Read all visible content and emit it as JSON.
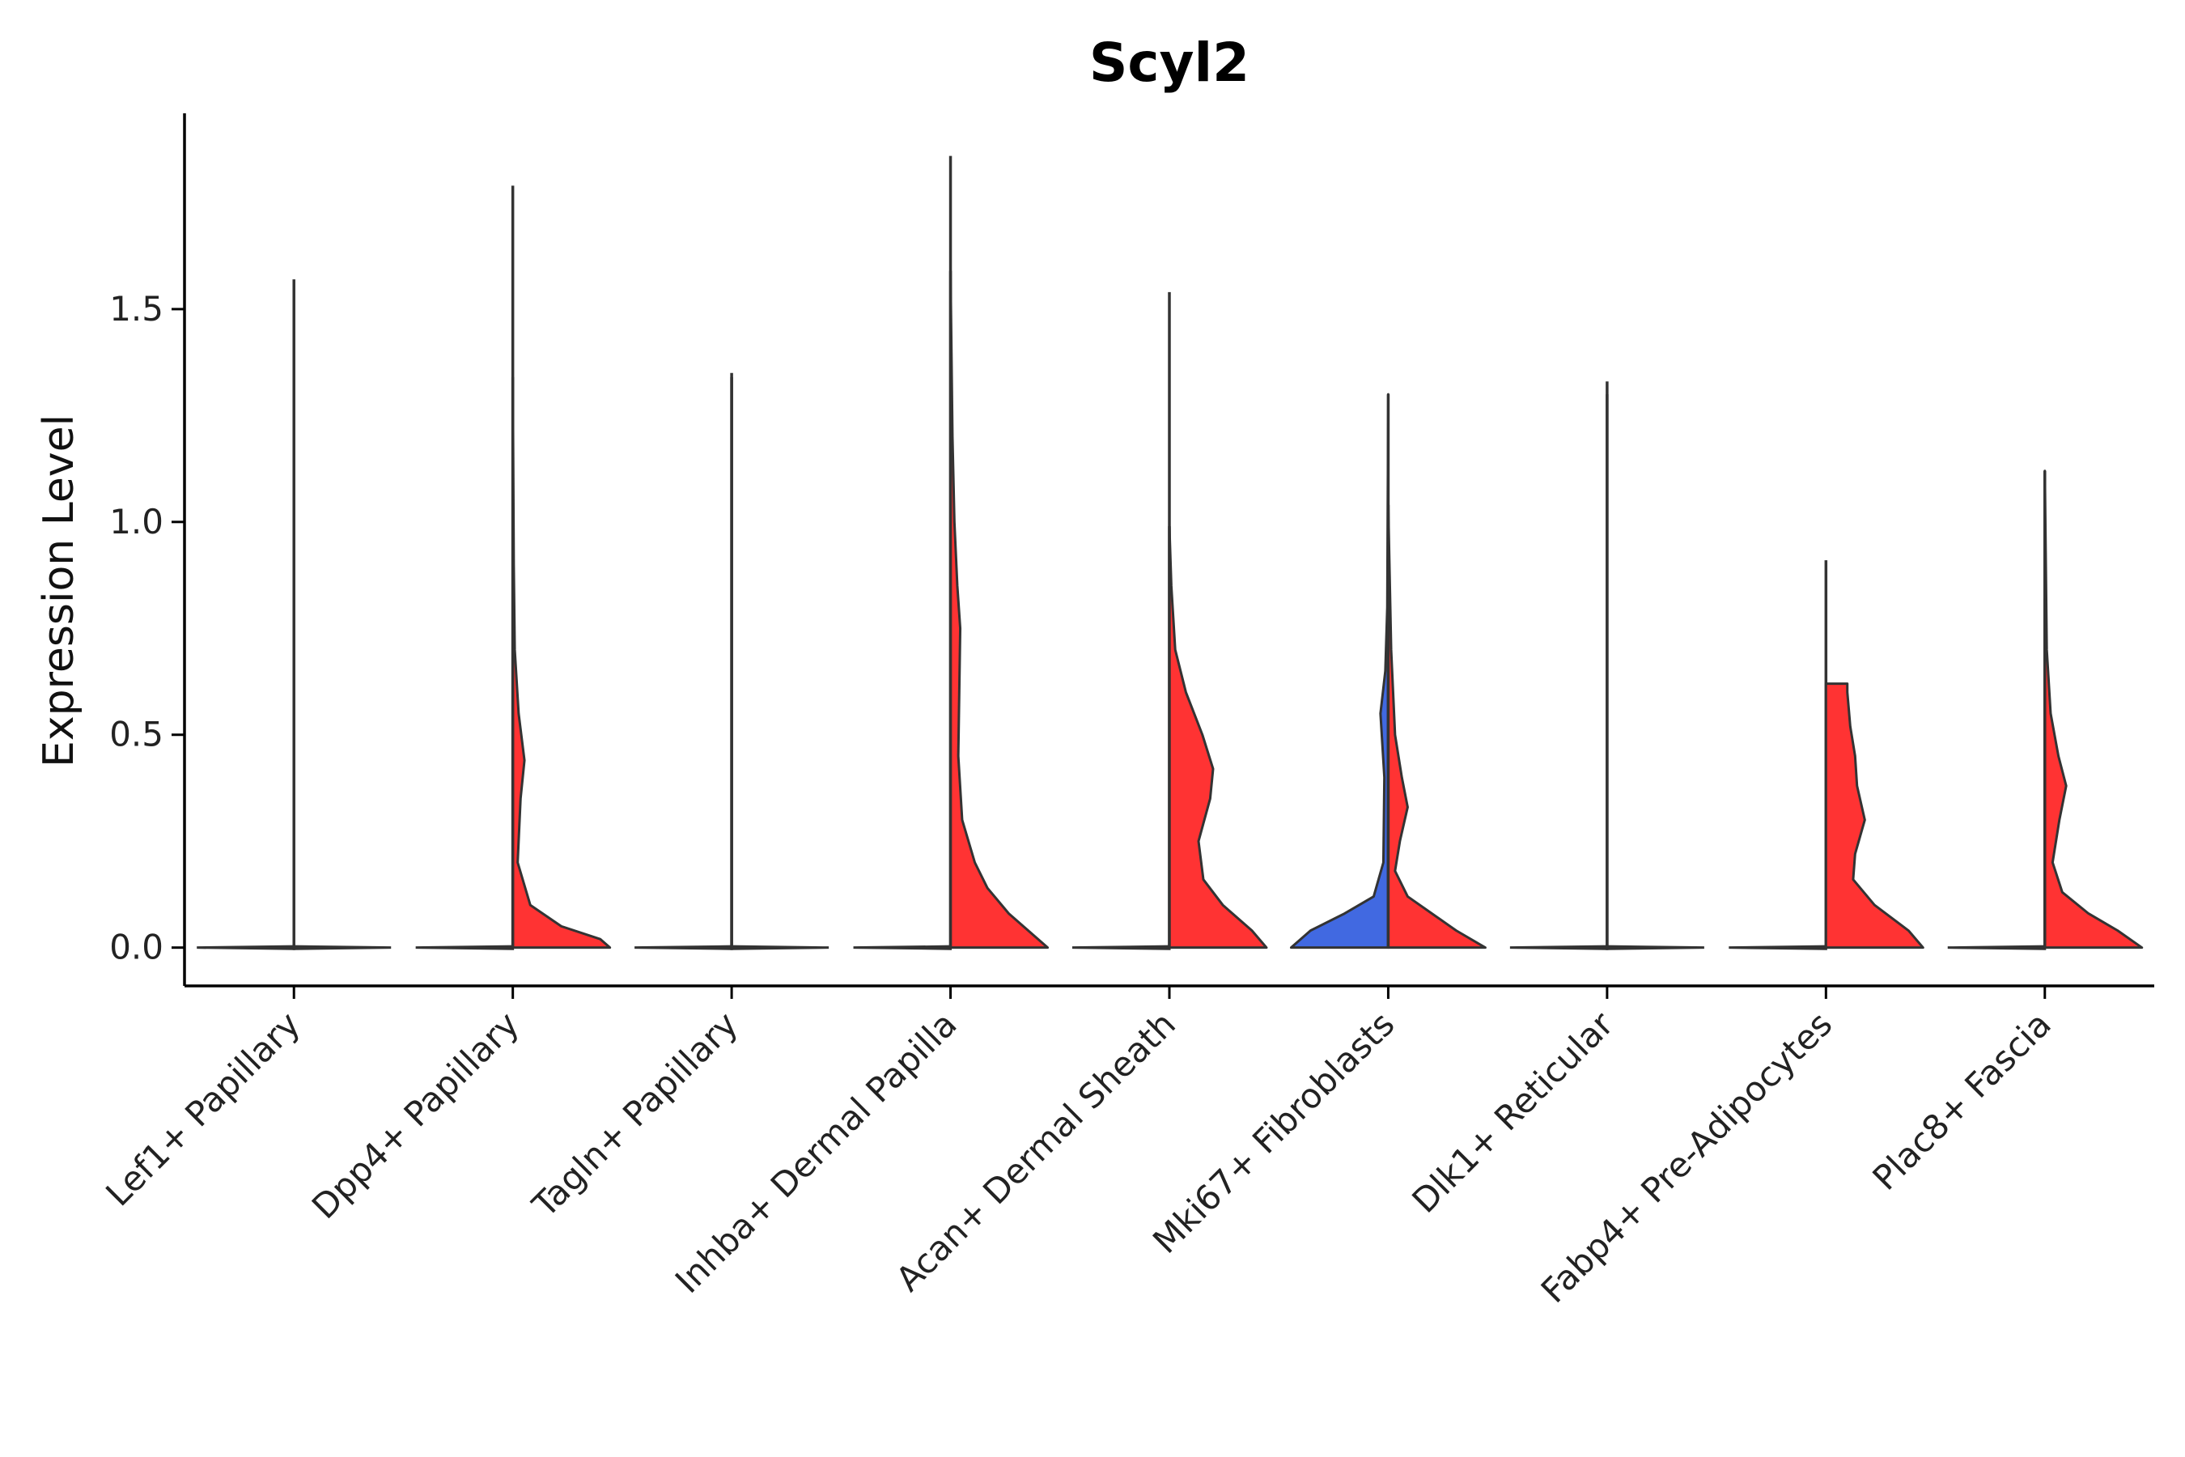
{
  "chart_data": {
    "type": "violin",
    "title": "Scyl2",
    "xlabel": "",
    "ylabel": "Expression Level",
    "ylim": [
      -0.09,
      1.96
    ],
    "yticks": [
      0.0,
      0.5,
      1.0,
      1.5
    ],
    "ytick_labels": [
      "0.0",
      "0.5",
      "1.0",
      "1.5"
    ],
    "grid": false,
    "legend": "none",
    "categories": [
      "Lef1+ Papillary",
      "Dpp4+ Papillary",
      "Tagln+ Papillary",
      "Inhba+ Dermal Papilla",
      "Acan+ Dermal Sheath",
      "Mki67+ Fibroblasts",
      "Dlk1+ Reticular",
      "Fabp4+ Pre-Adipocytes",
      "Plac8+ Fascia"
    ],
    "groups": [
      {
        "category": "Lef1+ Papillary",
        "split": "left",
        "color": "#ffffff",
        "max": 1.57,
        "density": [
          [
            0,
            1.0
          ],
          [
            1.57,
            0
          ]
        ]
      },
      {
        "category": "Lef1+ Papillary",
        "split": "right",
        "color": "#ffffff",
        "max": 0.0,
        "density": [
          [
            0,
            1.0
          ],
          [
            0.005,
            0
          ]
        ]
      },
      {
        "category": "Dpp4+ Papillary",
        "split": "left",
        "color": "#ffffff",
        "max": 1.79,
        "density": [
          [
            0,
            1.0
          ],
          [
            1.79,
            0
          ]
        ]
      },
      {
        "category": "Dpp4+ Papillary",
        "split": "right",
        "color": "#ff3333",
        "max": 1.34,
        "density": [
          [
            0,
            1.0
          ],
          [
            0.02,
            0.9
          ],
          [
            0.05,
            0.5
          ],
          [
            0.1,
            0.18
          ],
          [
            0.2,
            0.05
          ],
          [
            0.35,
            0.08
          ],
          [
            0.44,
            0.12
          ],
          [
            0.55,
            0.06
          ],
          [
            0.7,
            0.02
          ],
          [
            0.9,
            0.01
          ],
          [
            1.34,
            0
          ]
        ]
      },
      {
        "category": "Tagln+ Papillary",
        "split": "left",
        "color": "#ffffff",
        "max": 1.35,
        "density": [
          [
            0,
            1.0
          ],
          [
            1.35,
            0
          ]
        ]
      },
      {
        "category": "Tagln+ Papillary",
        "split": "right",
        "color": "#ffffff",
        "max": 1.34,
        "density": [
          [
            0,
            1.0
          ],
          [
            1.34,
            0
          ]
        ]
      },
      {
        "category": "Inhba+ Dermal Papilla",
        "split": "left",
        "color": "#ffffff",
        "max": 1.86,
        "density": [
          [
            0,
            1.0
          ],
          [
            1.86,
            0
          ]
        ]
      },
      {
        "category": "Inhba+ Dermal Papilla",
        "split": "right",
        "color": "#ff3333",
        "max": 1.59,
        "density": [
          [
            0,
            1.0
          ],
          [
            0.03,
            0.85
          ],
          [
            0.08,
            0.6
          ],
          [
            0.14,
            0.38
          ],
          [
            0.2,
            0.25
          ],
          [
            0.3,
            0.12
          ],
          [
            0.45,
            0.08
          ],
          [
            0.6,
            0.09
          ],
          [
            0.75,
            0.1
          ],
          [
            0.85,
            0.07
          ],
          [
            1.0,
            0.04
          ],
          [
            1.2,
            0.02
          ],
          [
            1.59,
            0
          ]
        ]
      },
      {
        "category": "Acan+ Dermal Sheath",
        "split": "left",
        "color": "#ffffff",
        "max": 1.54,
        "density": [
          [
            0,
            1.0
          ],
          [
            1.54,
            0
          ]
        ]
      },
      {
        "category": "Acan+ Dermal Sheath",
        "split": "right",
        "color": "#ff3333",
        "max": 0.99,
        "density": [
          [
            0,
            1.0
          ],
          [
            0.04,
            0.85
          ],
          [
            0.1,
            0.55
          ],
          [
            0.16,
            0.35
          ],
          [
            0.25,
            0.3
          ],
          [
            0.35,
            0.42
          ],
          [
            0.42,
            0.45
          ],
          [
            0.5,
            0.34
          ],
          [
            0.6,
            0.17
          ],
          [
            0.7,
            0.06
          ],
          [
            0.85,
            0.02
          ],
          [
            0.99,
            0
          ]
        ]
      },
      {
        "category": "Mki67+ Fibroblasts",
        "split": "left",
        "color": "#4169e1",
        "max": 1.3,
        "density": [
          [
            0,
            1.0
          ],
          [
            0.04,
            0.8
          ],
          [
            0.08,
            0.45
          ],
          [
            0.12,
            0.15
          ],
          [
            0.2,
            0.05
          ],
          [
            0.4,
            0.04
          ],
          [
            0.55,
            0.08
          ],
          [
            0.65,
            0.03
          ],
          [
            0.8,
            0.01
          ],
          [
            1.3,
            0
          ]
        ]
      },
      {
        "category": "Mki67+ Fibroblasts",
        "split": "right",
        "color": "#ff3333",
        "max": 1.04,
        "density": [
          [
            0,
            1.0
          ],
          [
            0.04,
            0.7
          ],
          [
            0.08,
            0.45
          ],
          [
            0.12,
            0.2
          ],
          [
            0.18,
            0.07
          ],
          [
            0.25,
            0.12
          ],
          [
            0.33,
            0.2
          ],
          [
            0.4,
            0.14
          ],
          [
            0.5,
            0.07
          ],
          [
            0.7,
            0.03
          ],
          [
            1.04,
            0
          ]
        ]
      },
      {
        "category": "Dlk1+ Reticular",
        "split": "left",
        "color": "#ffffff",
        "max": 1.33,
        "density": [
          [
            0,
            1.0
          ],
          [
            1.33,
            0
          ]
        ]
      },
      {
        "category": "Dlk1+ Reticular",
        "split": "right",
        "color": "#ffffff",
        "max": 1.3,
        "density": [
          [
            0,
            1.0
          ],
          [
            1.3,
            0
          ]
        ]
      },
      {
        "category": "Fabp4+ Pre-Adipocytes",
        "split": "left",
        "color": "#ffffff",
        "max": 0.91,
        "density": [
          [
            0,
            1.0
          ],
          [
            0.91,
            0
          ]
        ]
      },
      {
        "category": "Fabp4+ Pre-Adipocytes",
        "split": "right",
        "color": "#ff3333",
        "max": 0.62,
        "density": [
          [
            0,
            1.0
          ],
          [
            0.04,
            0.85
          ],
          [
            0.1,
            0.5
          ],
          [
            0.16,
            0.28
          ],
          [
            0.22,
            0.3
          ],
          [
            0.3,
            0.4
          ],
          [
            0.38,
            0.32
          ],
          [
            0.45,
            0.3
          ],
          [
            0.52,
            0.25
          ],
          [
            0.6,
            0.22
          ],
          [
            0.62,
            0.22
          ]
        ]
      },
      {
        "category": "Plac8+ Fascia",
        "split": "left",
        "color": "#ffffff",
        "max": 0.82,
        "density": [
          [
            0,
            1.0
          ],
          [
            0.82,
            0
          ]
        ]
      },
      {
        "category": "Plac8+ Fascia",
        "split": "right",
        "color": "#ff3333",
        "max": 1.12,
        "density": [
          [
            0,
            1.0
          ],
          [
            0.04,
            0.75
          ],
          [
            0.08,
            0.45
          ],
          [
            0.13,
            0.18
          ],
          [
            0.2,
            0.08
          ],
          [
            0.3,
            0.15
          ],
          [
            0.38,
            0.22
          ],
          [
            0.45,
            0.14
          ],
          [
            0.55,
            0.06
          ],
          [
            0.7,
            0.02
          ],
          [
            1.12,
            0
          ]
        ]
      }
    ]
  }
}
